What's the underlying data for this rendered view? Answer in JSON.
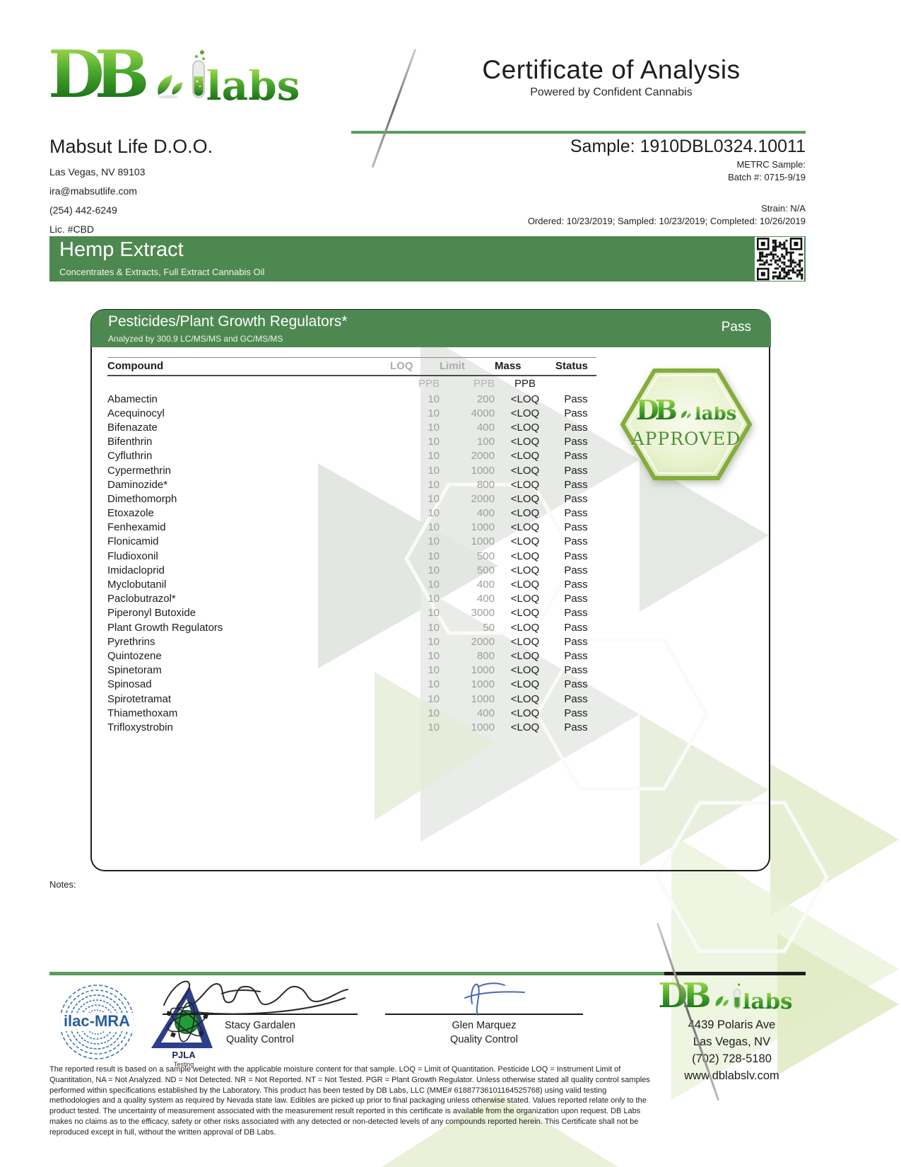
{
  "colors": {
    "banner_green": "#4e8851",
    "rule_green": "#5a9c5c",
    "logo_green_light": "#9fd64d",
    "logo_green_dark": "#156b15",
    "muted_gray": "#9e9e9e",
    "signature_blue": "#4a66b8"
  },
  "header": {
    "logo": {
      "db": "DB",
      "labs": "labs"
    },
    "title": "Certificate of Analysis",
    "subtitle": "Powered by Confident Cannabis"
  },
  "client": {
    "name": "Mabsut Life D.O.O.",
    "address": "Las Vegas, NV 89103",
    "email": "ira@mabsutlife.com",
    "phone": "(254) 442-6249",
    "license": "Lic. #CBD"
  },
  "sample": {
    "id": "Sample: 1910DBL0324.10011",
    "metrc": "METRC Sample:",
    "batch": "Batch #: 0715-9/19",
    "strain": "Strain: N/A",
    "dates": "Ordered: 10/23/2019; Sampled: 10/23/2019; Completed: 10/26/2019"
  },
  "product": {
    "name": "Hemp Extract",
    "category": "Concentrates & Extracts, Full Extract Cannabis Oil"
  },
  "panel": {
    "title": "Pesticides/Plant Growth Regulators*",
    "method": "Analyzed by 300.9 LC/MS/MS and GC/MS/MS",
    "status": "Pass",
    "columns": [
      "Compound",
      "LOQ",
      "Limit",
      "Mass",
      "Status"
    ],
    "units": [
      "PPB",
      "PPB",
      "PPB"
    ],
    "rows": [
      {
        "compound": "Abamectin",
        "loq": "10",
        "limit": "200",
        "mass": "<LOQ",
        "status": "Pass"
      },
      {
        "compound": "Acequinocyl",
        "loq": "10",
        "limit": "4000",
        "mass": "<LOQ",
        "status": "Pass"
      },
      {
        "compound": "Bifenazate",
        "loq": "10",
        "limit": "400",
        "mass": "<LOQ",
        "status": "Pass"
      },
      {
        "compound": "Bifenthrin",
        "loq": "10",
        "limit": "100",
        "mass": "<LOQ",
        "status": "Pass"
      },
      {
        "compound": "Cyfluthrin",
        "loq": "10",
        "limit": "2000",
        "mass": "<LOQ",
        "status": "Pass"
      },
      {
        "compound": "Cypermethrin",
        "loq": "10",
        "limit": "1000",
        "mass": "<LOQ",
        "status": "Pass"
      },
      {
        "compound": "Daminozide*",
        "loq": "10",
        "limit": "800",
        "mass": "<LOQ",
        "status": "Pass"
      },
      {
        "compound": "Dimethomorph",
        "loq": "10",
        "limit": "2000",
        "mass": "<LOQ",
        "status": "Pass"
      },
      {
        "compound": "Etoxazole",
        "loq": "10",
        "limit": "400",
        "mass": "<LOQ",
        "status": "Pass"
      },
      {
        "compound": "Fenhexamid",
        "loq": "10",
        "limit": "1000",
        "mass": "<LOQ",
        "status": "Pass"
      },
      {
        "compound": "Flonicamid",
        "loq": "10",
        "limit": "1000",
        "mass": "<LOQ",
        "status": "Pass"
      },
      {
        "compound": "Fludioxonil",
        "loq": "10",
        "limit": "500",
        "mass": "<LOQ",
        "status": "Pass"
      },
      {
        "compound": "Imidacloprid",
        "loq": "10",
        "limit": "500",
        "mass": "<LOQ",
        "status": "Pass"
      },
      {
        "compound": "Myclobutanil",
        "loq": "10",
        "limit": "400",
        "mass": "<LOQ",
        "status": "Pass"
      },
      {
        "compound": "Paclobutrazol*",
        "loq": "10",
        "limit": "400",
        "mass": "<LOQ",
        "status": "Pass"
      },
      {
        "compound": "Piperonyl Butoxide",
        "loq": "10",
        "limit": "3000",
        "mass": "<LOQ",
        "status": "Pass"
      },
      {
        "compound": "Plant Growth Regulators",
        "loq": "10",
        "limit": "50",
        "mass": "<LOQ",
        "status": "Pass"
      },
      {
        "compound": "Pyrethrins",
        "loq": "10",
        "limit": "2000",
        "mass": "<LOQ",
        "status": "Pass"
      },
      {
        "compound": "Quintozene",
        "loq": "10",
        "limit": "800",
        "mass": "<LOQ",
        "status": "Pass"
      },
      {
        "compound": "Spinetoram",
        "loq": "10",
        "limit": "1000",
        "mass": "<LOQ",
        "status": "Pass"
      },
      {
        "compound": "Spinosad",
        "loq": "10",
        "limit": "1000",
        "mass": "<LOQ",
        "status": "Pass"
      },
      {
        "compound": "Spirotetramat",
        "loq": "10",
        "limit": "1000",
        "mass": "<LOQ",
        "status": "Pass"
      },
      {
        "compound": "Thiamethoxam",
        "loq": "10",
        "limit": "400",
        "mass": "<LOQ",
        "status": "Pass"
      },
      {
        "compound": "Trifloxystrobin",
        "loq": "10",
        "limit": "1000",
        "mass": "<LOQ",
        "status": "Pass"
      }
    ]
  },
  "badge": {
    "db": "DB",
    "labs": "labs",
    "approved": "APPROVED"
  },
  "notes_label": "Notes:",
  "accreditations": {
    "ilac": "ilac-MRA",
    "pjla": "PJLA",
    "pjla_sub": "Testing"
  },
  "signatures": [
    {
      "name": "Stacy Gardalen",
      "title": "Quality Control"
    },
    {
      "name": "Glen Marquez",
      "title": "Quality Control"
    }
  ],
  "lab": {
    "logo": {
      "db": "DB",
      "labs": "labs"
    },
    "address": "4439 Polaris Ave",
    "city": "Las Vegas, NV",
    "phone": "(702) 728-5180",
    "website": "www.dblabslv.com"
  },
  "disclaimer": "The reported result is based on a sample weight with the applicable moisture content for that sample. LOQ = Limit of Quantitation. Pesticide LOQ = Instrument Limit of Quantitation, NA = Not Analyzed. ND = Not Detected. NR = Not Reported. NT = Not Tested. PGR = Plant Growth Regulator. Unless otherwise stated all quality control samples performed within specifications established by the Laboratory. This product has been tested by DB Labs, LLC (MME# 61887736101164525768) using valid testing methodologies and a quality system as required by Nevada state law. Edibles are picked up prior to final packaging unless otherwise stated. Values reported relate only to the product tested. The uncertainty of measurement associated with the measurement result reported in this certificate is available from the organization upon request. DB Labs makes no claims as to the efficacy, safety or other risks associated with any detected or non-detected levels of any compounds reported herein. This Certificate shall not be reproduced except in full, without the written approval of DB Labs."
}
